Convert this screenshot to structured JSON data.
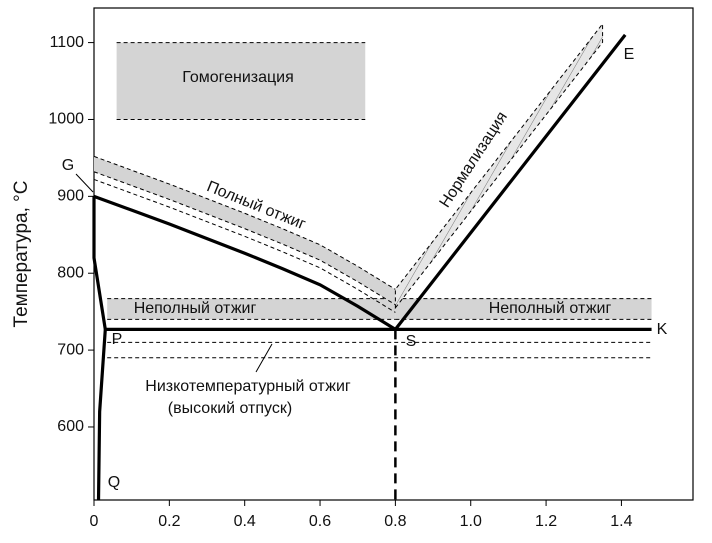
{
  "chart_data": {
    "type": "heat-treatment-diagram",
    "ylabel": "Температура, °C",
    "xlim": [
      0,
      1.59
    ],
    "ylim": [
      505,
      1145
    ],
    "xticks": [
      0,
      0.2,
      0.4,
      0.6,
      0.8,
      {
        "value": 1,
        "label": "1.0"
      },
      1.2,
      1.4
    ],
    "yticks": [
      600,
      700,
      800,
      900,
      1000,
      1100
    ],
    "line_color": "#000000",
    "band_color": "#d4d4d4",
    "curves": [
      {
        "x": [
          0,
          0.1,
          0.2,
          0.3,
          0.4,
          0.5,
          0.6,
          0.7,
          0.8
        ],
        "y": [
          900,
          882,
          864,
          845,
          826,
          806,
          785,
          757,
          727
        ],
        "dashed": false
      },
      {
        "x": [
          0.8,
          1.41
        ],
        "y": [
          727,
          1110
        ],
        "dashed": false
      },
      {
        "x": [
          0.03,
          1.48
        ],
        "y": [
          727,
          727
        ],
        "dashed": false
      },
      {
        "x": [
          0,
          0,
          0.03
        ],
        "y": [
          900,
          820,
          727
        ],
        "dashed": false
      },
      {
        "x": [
          0.03,
          0.015,
          0.012
        ],
        "y": [
          727,
          620,
          505
        ],
        "dashed": false
      },
      {
        "x": [
          0.8,
          0.8
        ],
        "y": [
          727,
          505
        ],
        "dashed": true
      }
    ],
    "full_anneal": {
      "label": "Полный отжиг",
      "offsets": [
        22,
        32,
        52
      ]
    },
    "normalization": {
      "label": "Нормализация",
      "offsets": [
        28,
        52
      ],
      "x_end": 1.35
    },
    "regions": [
      {
        "labels": [
          "Гомогенизация"
        ],
        "xlim": [
          0.06,
          0.72
        ],
        "ylim": [
          1000,
          1100
        ],
        "fill": true
      },
      {
        "labels": [
          "Неполный отжиг"
        ],
        "xlim": [
          0.035,
          0.8
        ],
        "ylim": [
          740,
          767
        ],
        "fill": true
      },
      {
        "labels": [
          "Неполный отжиг"
        ],
        "xlim": [
          0.8,
          1.48
        ],
        "ylim": [
          740,
          767
        ],
        "fill": true
      },
      {
        "labels": [
          "Низкотемпературный отжиг",
          "(высокий отпуск)"
        ],
        "xlim": [
          0.035,
          1.48
        ],
        "ylim": [
          690,
          710
        ],
        "fill": false
      }
    ],
    "point_labels": [
      "G",
      "P",
      "S",
      "E",
      "K",
      "Q"
    ]
  }
}
